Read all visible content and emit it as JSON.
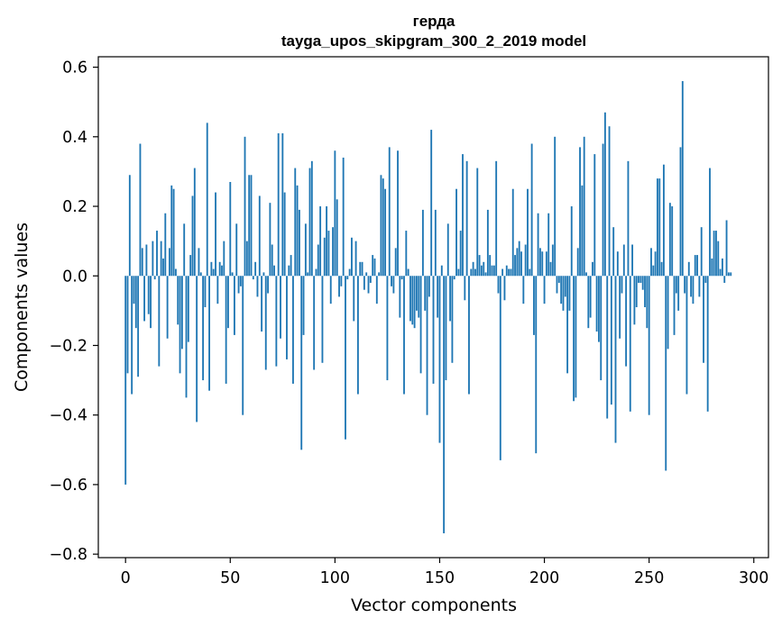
{
  "colors": {
    "bar": "#1f77b4",
    "axis": "#000000",
    "background": "#ffffff"
  },
  "chart_data": {
    "type": "bar",
    "title": "герда",
    "subtitle": "tayga_upos_skipgram_300_2_2019 model",
    "xlabel": "Vector components",
    "ylabel": "Components values",
    "xlim": [
      -13,
      307
    ],
    "ylim": [
      -0.81,
      0.63
    ],
    "x_ticks": [
      0,
      50,
      100,
      150,
      200,
      250,
      300
    ],
    "x_tick_labels": [
      "0",
      "50",
      "100",
      "150",
      "200",
      "250",
      "300"
    ],
    "y_ticks": [
      0.6,
      0.4,
      0.2,
      0.0,
      -0.2,
      -0.4,
      -0.6,
      -0.8
    ],
    "y_tick_labels": [
      "0.6",
      "0.4",
      "0.2",
      "0.0",
      "−0.2",
      "−0.4",
      "−0.6",
      "−0.8"
    ],
    "grid": false,
    "values": [
      -0.6,
      -0.28,
      0.29,
      -0.34,
      -0.08,
      -0.15,
      -0.29,
      0.38,
      0.08,
      -0.13,
      0.09,
      -0.11,
      -0.15,
      0.1,
      -0.01,
      0.13,
      -0.26,
      0.1,
      0.05,
      0.18,
      -0.18,
      0.08,
      0.26,
      0.25,
      0.02,
      -0.14,
      -0.28,
      -0.21,
      0.15,
      -0.35,
      -0.19,
      0.06,
      0.23,
      0.31,
      -0.42,
      0.08,
      0.01,
      -0.3,
      -0.09,
      0.44,
      -0.33,
      0.04,
      0.02,
      0.24,
      -0.08,
      0.04,
      0.03,
      0.1,
      -0.31,
      -0.15,
      0.27,
      0.01,
      -0.17,
      0.15,
      -0.05,
      -0.03,
      -0.4,
      0.4,
      0.1,
      0.29,
      0.29,
      -0.01,
      0.04,
      -0.06,
      0.23,
      -0.16,
      0.01,
      -0.27,
      -0.05,
      0.21,
      0.09,
      0.03,
      -0.26,
      0.41,
      -0.18,
      0.41,
      0.24,
      -0.24,
      0.03,
      0.06,
      -0.31,
      0.31,
      0.26,
      0.19,
      -0.5,
      -0.17,
      0.15,
      0.01,
      0.31,
      0.33,
      -0.27,
      0.02,
      0.09,
      0.2,
      -0.25,
      0.11,
      0.2,
      0.13,
      -0.08,
      0.14,
      0.36,
      0.22,
      -0.06,
      -0.03,
      0.34,
      -0.47,
      -0.01,
      0.02,
      0.11,
      -0.13,
      0.1,
      -0.34,
      0.04,
      0.04,
      -0.04,
      0.01,
      -0.05,
      -0.02,
      0.06,
      0.05,
      -0.08,
      0.01,
      0.29,
      0.28,
      0.25,
      -0.3,
      0.37,
      -0.03,
      -0.05,
      0.08,
      0.36,
      -0.12,
      -0.01,
      -0.34,
      0.13,
      0.02,
      -0.13,
      -0.14,
      -0.15,
      -0.1,
      -0.12,
      -0.28,
      0.19,
      -0.1,
      -0.4,
      -0.06,
      0.42,
      -0.31,
      0.19,
      -0.12,
      -0.48,
      0.03,
      -0.74,
      -0.3,
      0.15,
      -0.13,
      -0.25,
      -0.01,
      0.25,
      0.02,
      0.13,
      0.35,
      -0.07,
      0.33,
      -0.34,
      0.02,
      0.04,
      0.02,
      0.31,
      0.06,
      0.03,
      0.04,
      0.01,
      0.19,
      0.06,
      0.03,
      0.03,
      0.33,
      -0.05,
      -0.53,
      0.02,
      -0.07,
      0.03,
      0.02,
      0.02,
      0.25,
      0.06,
      0.08,
      0.1,
      0.07,
      -0.08,
      0.09,
      0.25,
      0.02,
      0.38,
      -0.17,
      -0.51,
      0.18,
      0.08,
      0.07,
      -0.08,
      0.07,
      0.18,
      0.04,
      0.09,
      0.4,
      -0.05,
      -0.02,
      -0.08,
      -0.1,
      -0.06,
      -0.28,
      -0.1,
      0.2,
      -0.36,
      -0.35,
      0.08,
      0.37,
      0.26,
      0.4,
      0.01,
      -0.15,
      -0.12,
      0.04,
      0.35,
      -0.16,
      -0.19,
      -0.3,
      0.38,
      0.47,
      -0.41,
      0.43,
      -0.37,
      0.14,
      -0.48,
      0.07,
      -0.18,
      -0.05,
      0.09,
      -0.26,
      0.33,
      -0.39,
      0.09,
      -0.14,
      -0.09,
      -0.02,
      -0.02,
      -0.04,
      -0.09,
      -0.15,
      -0.4,
      0.08,
      0.03,
      0.07,
      0.28,
      0.28,
      0.04,
      0.32,
      -0.56,
      -0.21,
      0.21,
      0.2,
      -0.17,
      -0.05,
      -0.1,
      0.37,
      0.56,
      -0.05,
      -0.34,
      0.04,
      -0.06,
      -0.08,
      0.06,
      0.06,
      -0.06,
      0.14,
      -0.25,
      -0.02,
      -0.39,
      0.31,
      0.05,
      0.13,
      0.13,
      0.1,
      0.02,
      0.05,
      -0.02,
      0.16,
      0.01,
      0.01
    ]
  }
}
